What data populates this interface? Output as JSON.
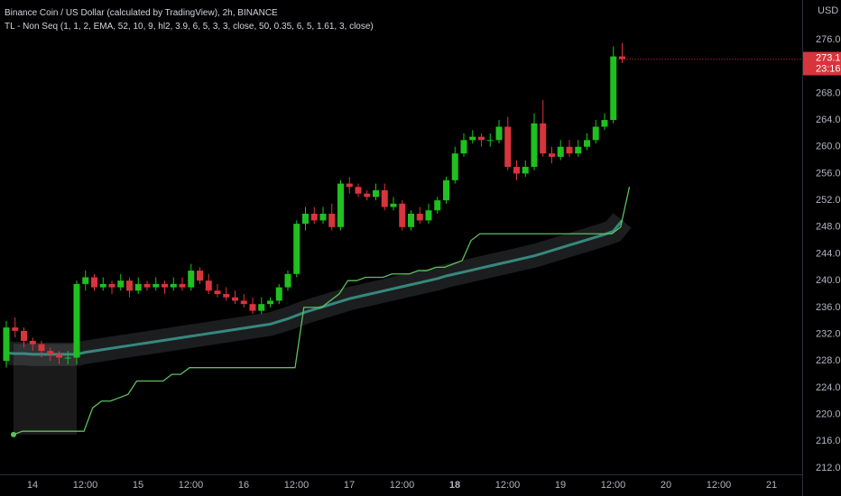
{
  "chart_data": {
    "type": "candlestick",
    "title": "Binance Coin / US Dollar (calculated by TradingView), 2h, BINANCE",
    "indicator": "TL - Non Seq (1, 1, 2, EMA, 52, 10, 9, hl2, 3.9, 6, 5, 3, 3, close, 50, 0.35, 6, 5, 1.61, 3, close)",
    "currency": "USD",
    "countdown": "23:16",
    "up_color": "#1fc01f",
    "down_color": "#d8343c",
    "stop_color": "#5cc15c",
    "ema_color": "#3c9a8e",
    "grid": false,
    "categories": [
      "14",
      "12:00",
      "15",
      "12:00",
      "16",
      "12:00",
      "17",
      "12:00",
      "18",
      "12:00",
      "19",
      "12:00",
      "20",
      "12:00",
      "21"
    ],
    "ylim": [
      211,
      278.5
    ],
    "yticks": [
      {
        "value": 212,
        "label": "212.0"
      },
      {
        "value": 216,
        "label": "216.0"
      },
      {
        "value": 220,
        "label": "220.0"
      },
      {
        "value": 224,
        "label": "224.0"
      },
      {
        "value": 228,
        "label": "228.0"
      },
      {
        "value": 232,
        "label": "232.0"
      },
      {
        "value": 236,
        "label": "236.0"
      },
      {
        "value": 240,
        "label": "240.0"
      },
      {
        "value": 244,
        "label": "244.0"
      },
      {
        "value": 248,
        "label": "248.0"
      },
      {
        "value": 252,
        "label": "252.0"
      },
      {
        "value": 256,
        "label": "256.0"
      },
      {
        "value": 260,
        "label": "260.0"
      },
      {
        "value": 264,
        "label": "264.0"
      },
      {
        "value": 268,
        "label": "268.0"
      },
      {
        "value": 272,
        "label": "272.0"
      },
      {
        "value": 276,
        "label": "276.0"
      }
    ],
    "open": [
      228,
      233,
      232.5,
      231,
      230.5,
      229.5,
      229,
      228.5,
      228.5,
      239.5,
      240.5,
      239,
      239.5,
      239,
      240,
      238.5,
      239.5,
      239,
      239.5,
      239,
      239.5,
      239,
      241.5,
      240,
      238.5,
      238,
      237.5,
      237,
      236.5,
      235.5,
      236.5,
      237,
      239,
      241,
      248.5,
      250,
      249,
      250,
      248,
      254.5,
      254,
      253,
      252.5,
      253.5,
      251,
      251.5,
      248,
      250,
      249,
      250.5,
      252,
      255,
      259,
      261,
      261.5,
      261,
      261,
      263,
      257,
      256,
      257,
      263.5,
      259,
      258.5,
      260,
      259,
      260,
      261,
      263,
      264,
      273.5
    ],
    "high": [
      234,
      234.5,
      233,
      231.5,
      231,
      230,
      229.5,
      229.5,
      240,
      241.5,
      241,
      240.5,
      240,
      241,
      240.5,
      240.5,
      240,
      240.5,
      240,
      240.5,
      240.5,
      242.5,
      242,
      241,
      239.5,
      239,
      238.5,
      238,
      237.5,
      237.5,
      237.5,
      239.5,
      241.5,
      249,
      251,
      251,
      251,
      251.5,
      255,
      255.5,
      254.5,
      253.5,
      254.5,
      254.5,
      252.5,
      252,
      250.5,
      251,
      251.5,
      252.5,
      255.5,
      260,
      262,
      262.5,
      262,
      262,
      264,
      264.5,
      258,
      258,
      265,
      267,
      260,
      261,
      261,
      261,
      262,
      264,
      265,
      275,
      275.5
    ],
    "low": [
      227,
      231.5,
      230,
      229.5,
      228.5,
      228,
      227.5,
      227.5,
      227.5,
      238.5,
      238.5,
      238.5,
      238,
      238.5,
      237.5,
      238,
      238.5,
      238.5,
      238,
      238.5,
      238.5,
      238.5,
      239.5,
      238,
      237.5,
      237,
      236.5,
      236,
      235,
      235,
      236,
      236.5,
      238.5,
      240.5,
      247.5,
      248.5,
      248.5,
      247.5,
      247.5,
      253,
      252.5,
      252,
      252,
      250.5,
      250.5,
      247.5,
      247.5,
      248.5,
      248.5,
      250,
      251.5,
      254.5,
      258.5,
      260.5,
      260,
      260,
      260.5,
      256.5,
      255,
      255.5,
      256.5,
      258.5,
      257.5,
      258,
      258.5,
      258.5,
      259.5,
      260.5,
      262.5,
      263.5,
      272.5
    ],
    "close": [
      233,
      232.5,
      231,
      230.5,
      229.5,
      229,
      228.5,
      228.5,
      239.5,
      240.5,
      239,
      239.5,
      239,
      240,
      238.5,
      239.5,
      239,
      239.5,
      239,
      239.5,
      239,
      241.5,
      240,
      238.5,
      238,
      237.5,
      237,
      236.5,
      235.5,
      236.5,
      237,
      239,
      241,
      248.5,
      250,
      249,
      250,
      248,
      254.5,
      254,
      253,
      252.5,
      253.5,
      251,
      251.5,
      248,
      250,
      249,
      250.5,
      252,
      255,
      259,
      261,
      261.5,
      261,
      261,
      263,
      257,
      256,
      257,
      263.5,
      259,
      258.5,
      260,
      259,
      260,
      261,
      263,
      264,
      273.5,
      273.1
    ],
    "trailing_stop": [
      217,
      217.5,
      217.5,
      217.5,
      217.5,
      217.5,
      217.5,
      217.5,
      217.5,
      221,
      222,
      222,
      222.5,
      223,
      225,
      225,
      225,
      225,
      226,
      226,
      227,
      227,
      227,
      227,
      227,
      227,
      227,
      227,
      227,
      227,
      227,
      227,
      227,
      236,
      236,
      236,
      237,
      238,
      240,
      240,
      240.5,
      240.5,
      240.5,
      241,
      241,
      241,
      241.5,
      241.5,
      242,
      242,
      242.5,
      243,
      246,
      247,
      247,
      247,
      247,
      247,
      247,
      247,
      247,
      247,
      247,
      247,
      247,
      247,
      247,
      247,
      247,
      248,
      254
    ],
    "ema": [
      229.2,
      229.1,
      229.1,
      229,
      229,
      229,
      229,
      229,
      229,
      229.3,
      229.5,
      229.7,
      229.9,
      230.1,
      230.3,
      230.5,
      230.7,
      230.9,
      231.1,
      231.3,
      231.5,
      231.7,
      231.9,
      232.1,
      232.3,
      232.5,
      232.7,
      232.9,
      233.1,
      233.3,
      233.5,
      233.9,
      234.3,
      234.8,
      235.3,
      235.7,
      236.1,
      236.5,
      236.9,
      237.3,
      237.6,
      237.9,
      238.2,
      238.5,
      238.8,
      239.1,
      239.4,
      239.7,
      240,
      240.3,
      240.7,
      241,
      241.3,
      241.6,
      241.9,
      242.2,
      242.5,
      242.8,
      243.1,
      243.4,
      243.7,
      244.1,
      244.5,
      244.9,
      245.3,
      245.7,
      246.1,
      246.5,
      246.9,
      247.4,
      249
    ]
  }
}
